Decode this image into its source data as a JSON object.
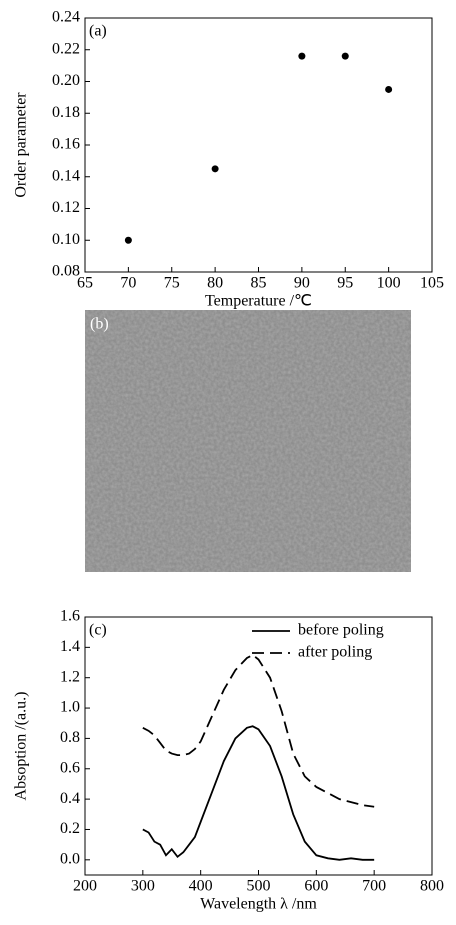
{
  "chart_data": [
    {
      "type": "scatter",
      "panel_label": "(a)",
      "xlabel": "Temperature /℃",
      "ylabel": "Order parameter",
      "color": "#000000",
      "x": [
        70,
        80,
        90,
        95,
        100
      ],
      "values": [
        0.1,
        0.145,
        0.216,
        0.216,
        0.195
      ],
      "xlim": [
        65,
        105
      ],
      "xticks": [
        65,
        70,
        75,
        80,
        85,
        90,
        95,
        100,
        105
      ],
      "ylim": [
        0.08,
        0.24
      ],
      "yticks": [
        0.08,
        {
          "value": 0.1,
          "label": "0.10"
        },
        0.12,
        0.14,
        0.16,
        0.18,
        {
          "value": 0.2,
          "label": "0.20"
        },
        0.22,
        0.24
      ]
    },
    {
      "type": "line",
      "panel_label": "(c)",
      "xlabel": "Wavelength λ /nm",
      "ylabel": "Absoption /(a.u.)",
      "legend": "upper right",
      "x": [
        300,
        310,
        320,
        330,
        340,
        350,
        360,
        370,
        380,
        390,
        400,
        420,
        440,
        460,
        480,
        490,
        500,
        520,
        540,
        560,
        580,
        600,
        620,
        640,
        660,
        680,
        700
      ],
      "series": [
        {
          "name": "before poling",
          "color": "#000000",
          "dash": "solid",
          "values": [
            0.2,
            0.18,
            0.12,
            0.1,
            0.03,
            0.07,
            0.02,
            0.05,
            0.1,
            0.15,
            0.25,
            0.45,
            0.65,
            0.8,
            0.87,
            0.88,
            0.86,
            0.75,
            0.55,
            0.3,
            0.12,
            0.03,
            0.01,
            0.0,
            0.01,
            0.0,
            0.0
          ]
        },
        {
          "name": "after poling",
          "color": "#000000",
          "dash": "dashed",
          "values": [
            0.87,
            0.85,
            0.82,
            0.77,
            0.72,
            0.7,
            0.69,
            0.69,
            0.7,
            0.73,
            0.78,
            0.95,
            1.12,
            1.25,
            1.33,
            1.35,
            1.32,
            1.2,
            0.98,
            0.7,
            0.55,
            0.48,
            0.44,
            0.4,
            0.38,
            0.36,
            0.35
          ]
        }
      ],
      "xlim": [
        200,
        800
      ],
      "xticks": [
        200,
        300,
        400,
        500,
        600,
        700,
        800
      ],
      "ylim": [
        -0.1,
        1.6
      ],
      "yticks": [
        {
          "value": 0,
          "label": "0.0"
        },
        0.2,
        0.4,
        0.6,
        0.8,
        {
          "value": 1,
          "label": "1.0"
        },
        1.2,
        1.4,
        1.6
      ]
    }
  ],
  "image_panel": {
    "label": "(b)"
  }
}
